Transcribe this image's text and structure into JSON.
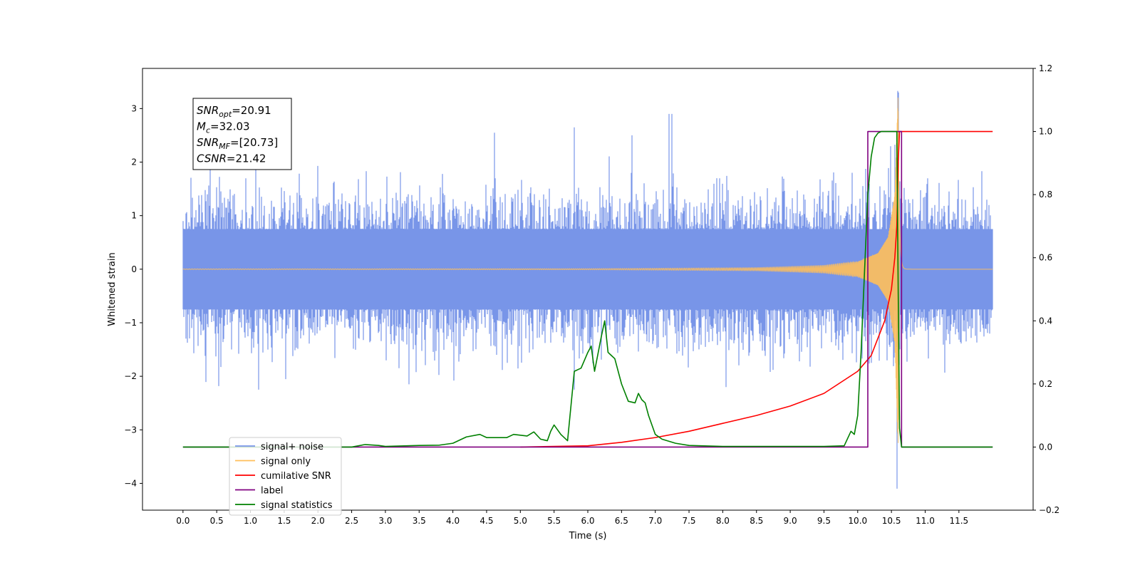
{
  "chart_data": {
    "type": "line",
    "title": "",
    "xlabel": "Time (s)",
    "ylabel": "Whitened strain",
    "y2label": "",
    "xlim": [
      -0.6,
      12.6
    ],
    "ylim": [
      -4.5,
      3.75
    ],
    "y2lim": [
      -0.2,
      1.2
    ],
    "xticks": [
      0.0,
      0.5,
      1.0,
      1.5,
      2.0,
      2.5,
      3.0,
      3.5,
      4.0,
      4.5,
      5.0,
      5.5,
      6.0,
      6.5,
      7.0,
      7.5,
      8.0,
      8.5,
      9.0,
      9.5,
      10.0,
      10.5,
      11.0,
      11.5
    ],
    "xtick_labels": [
      "0.0",
      "0.5",
      "1.0",
      "1.5",
      "2.0",
      "2.5",
      "3.0",
      "3.5",
      "4.0",
      "4.5",
      "5.0",
      "5.5",
      "6.0",
      "6.5",
      "7.0",
      "7.5",
      "8.0",
      "8.5",
      "9.0",
      "9.5",
      "10.0",
      "10.5",
      "11.0",
      "11.5"
    ],
    "yticks": [
      3,
      2,
      1,
      0,
      -1,
      -2,
      -3,
      -4
    ],
    "ytick_labels": [
      "3",
      "2",
      "1",
      "0",
      "−1",
      "−2",
      "−3",
      "−4"
    ],
    "y2ticks": [
      1.2,
      1.0,
      0.8,
      0.6,
      0.4,
      0.2,
      0.0,
      -0.2
    ],
    "y2tick_labels": [
      "1.2",
      "1.0",
      "0.8",
      "0.6",
      "0.4",
      "0.2",
      "0.0",
      "−0.2"
    ],
    "grid": false,
    "legend_position": "bottom-left",
    "annotation_box": {
      "position": "top-left",
      "lines": [
        {
          "sym": "SNR",
          "sub": "opt",
          "value": "=20.91"
        },
        {
          "sym": "M",
          "sub": "c",
          "value": "=32.03"
        },
        {
          "sym": "SNR",
          "sub": "MF",
          "value": "=[20.73]"
        },
        {
          "sym": "CSNR",
          "sub": "",
          "value": "=21.42"
        }
      ]
    },
    "series": [
      {
        "name": "signal+ noise",
        "color": "#7895e8",
        "axis": "left",
        "kind": "noise",
        "x_range": [
          0.0,
          12.0
        ],
        "envelope_typical": [
          -1.3,
          1.3
        ],
        "envelope_max": [
          -2.25,
          2.9
        ],
        "extremes": [
          {
            "x": 7.2,
            "y": 2.9
          },
          {
            "x": 7.25,
            "y": 2.9
          },
          {
            "x": 5.8,
            "y": 2.65
          },
          {
            "x": 4.62,
            "y": 2.55
          },
          {
            "x": 0.4,
            "y": 2.45
          },
          {
            "x": 6.65,
            "y": 2.5
          },
          {
            "x": 1.12,
            "y": -2.25
          },
          {
            "x": 3.35,
            "y": -2.15
          },
          {
            "x": 5.8,
            "y": -2.25
          },
          {
            "x": 8.05,
            "y": -2.2
          },
          {
            "x": 10.58,
            "y": -4.1
          },
          {
            "x": 10.6,
            "y": 3.3
          }
        ]
      },
      {
        "name": "signal only",
        "color": "#ffbf5a",
        "axis": "left",
        "kind": "chirp",
        "merger_time": 10.6,
        "peak_amplitude": 3.4,
        "amplitude_points": [
          [
            0.0,
            0.005
          ],
          [
            6.0,
            0.01
          ],
          [
            8.5,
            0.03
          ],
          [
            9.5,
            0.07
          ],
          [
            10.0,
            0.14
          ],
          [
            10.3,
            0.3
          ],
          [
            10.45,
            0.6
          ],
          [
            10.55,
            1.4
          ],
          [
            10.6,
            3.4
          ]
        ]
      },
      {
        "name": "cumilative SNR",
        "color": "#ff0000",
        "axis": "right",
        "x": [
          5.0,
          6.0,
          6.5,
          7.0,
          7.5,
          8.0,
          8.5,
          9.0,
          9.5,
          10.0,
          10.2,
          10.4,
          10.5,
          10.55,
          10.58,
          10.6,
          10.62,
          11.0,
          11.5,
          12.0
        ],
        "values": [
          0.0,
          0.004,
          0.015,
          0.03,
          0.05,
          0.075,
          0.1,
          0.13,
          0.17,
          0.24,
          0.29,
          0.4,
          0.5,
          0.6,
          0.7,
          0.9,
          1.0,
          1.0,
          1.0,
          1.0
        ]
      },
      {
        "name": "label",
        "color": "#800080",
        "axis": "right",
        "x": [
          0.0,
          10.15,
          10.15,
          10.65,
          10.65,
          12.0
        ],
        "values": [
          0.0,
          0.0,
          1.0,
          1.0,
          0.0,
          0.0
        ]
      },
      {
        "name": "signal statistics",
        "color": "#008000",
        "axis": "right",
        "x": [
          0.0,
          1.0,
          2.0,
          2.5,
          2.7,
          2.9,
          3.0,
          3.5,
          3.8,
          4.0,
          4.2,
          4.4,
          4.5,
          4.7,
          4.8,
          4.9,
          5.1,
          5.2,
          5.3,
          5.4,
          5.45,
          5.5,
          5.6,
          5.7,
          5.8,
          5.9,
          6.0,
          6.05,
          6.1,
          6.2,
          6.25,
          6.3,
          6.35,
          6.4,
          6.5,
          6.6,
          6.7,
          6.75,
          6.8,
          6.85,
          6.9,
          7.0,
          7.1,
          7.3,
          7.5,
          8.0,
          9.0,
          9.5,
          9.8,
          9.9,
          9.95,
          10.0,
          10.05,
          10.1,
          10.15,
          10.2,
          10.25,
          10.3,
          10.35,
          10.4,
          10.5,
          10.58,
          10.6,
          10.62,
          10.65,
          10.7,
          11.0,
          12.0
        ],
        "values": [
          0.0,
          0.0,
          0.0,
          0.0,
          0.008,
          0.005,
          0.002,
          0.005,
          0.006,
          0.012,
          0.032,
          0.04,
          0.03,
          0.03,
          0.03,
          0.04,
          0.035,
          0.048,
          0.025,
          0.02,
          0.05,
          0.07,
          0.04,
          0.02,
          0.24,
          0.25,
          0.3,
          0.32,
          0.24,
          0.35,
          0.4,
          0.3,
          0.29,
          0.28,
          0.2,
          0.145,
          0.14,
          0.17,
          0.15,
          0.14,
          0.1,
          0.04,
          0.025,
          0.012,
          0.005,
          0.002,
          0.002,
          0.002,
          0.004,
          0.05,
          0.04,
          0.1,
          0.3,
          0.55,
          0.8,
          0.92,
          0.98,
          0.995,
          1.0,
          1.0,
          1.0,
          1.0,
          0.5,
          0.06,
          0.0,
          0.0,
          0.0,
          0.0
        ]
      }
    ],
    "legend_entries": [
      "signal+ noise",
      "signal only",
      "cumilative SNR",
      "label",
      "signal statistics"
    ]
  }
}
